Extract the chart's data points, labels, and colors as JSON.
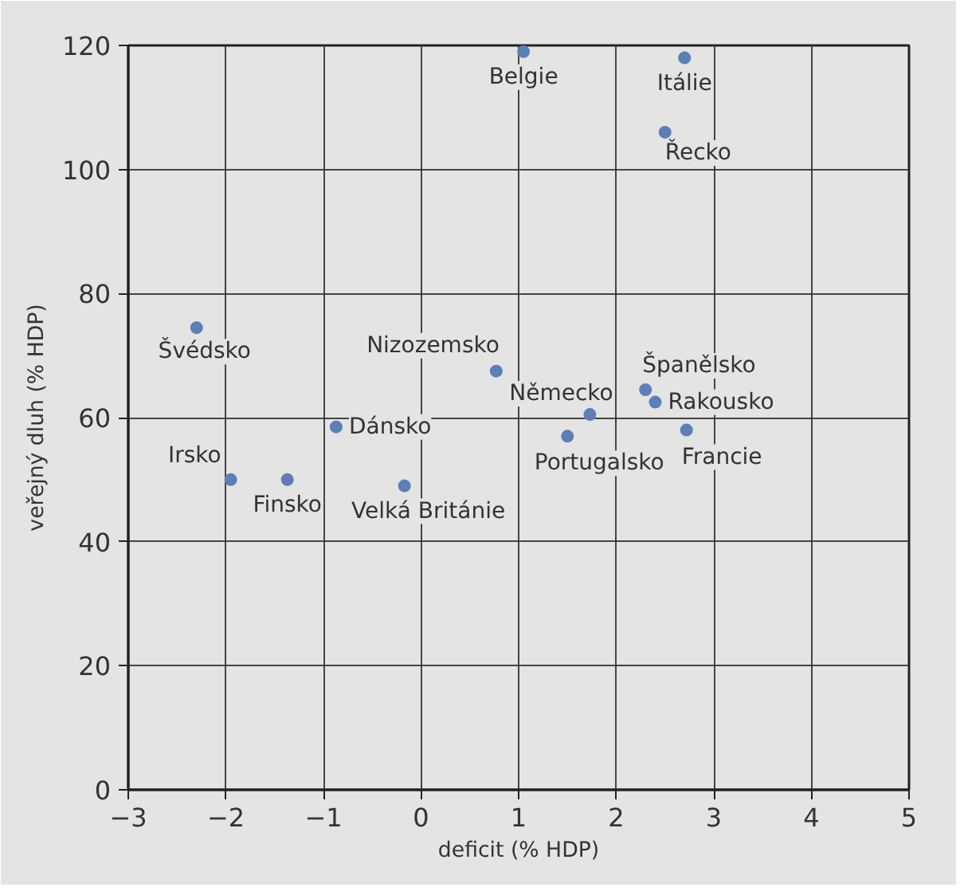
{
  "chart_data": {
    "type": "scatter",
    "xlabel": "deficit (% HDP)",
    "ylabel": "veřejný dluh (% HDP)",
    "x": [
      1.05,
      2.7,
      2.5,
      -2.3,
      0.77,
      1.73,
      2.3,
      2.4,
      1.5,
      2.72,
      -0.87,
      -1.95,
      -1.37,
      -0.17
    ],
    "values": [
      119,
      118,
      106,
      74.5,
      67.5,
      60.5,
      64.5,
      62.5,
      57,
      58,
      58.5,
      50,
      50,
      49
    ],
    "color": "#5b7fb8",
    "marker": "circle",
    "xlim": [
      -3,
      5
    ],
    "ylim": [
      0,
      120
    ],
    "xticks": [
      {
        "value": -3,
        "label": "−3"
      },
      {
        "value": -2,
        "label": "−2"
      },
      {
        "value": -1,
        "label": "−1"
      },
      0,
      1,
      2,
      3,
      4,
      5
    ],
    "yticks": [
      0,
      20,
      40,
      60,
      80,
      100,
      120
    ],
    "grid": true,
    "annotations": [
      {
        "text": "Belgie",
        "x": 1.05,
        "y": 119
      },
      {
        "text": "Itálie",
        "x": 2.7,
        "y": 118
      },
      {
        "text": "Řecko",
        "x": 2.5,
        "y": 106
      },
      {
        "text": "Švédsko",
        "x": -2.3,
        "y": 74.5
      },
      {
        "text": "Nizozemsko",
        "x": 0.77,
        "y": 67.5
      },
      {
        "text": "Německo",
        "x": 1.73,
        "y": 60.5
      },
      {
        "text": "Španělsko",
        "x": 2.3,
        "y": 64.5
      },
      {
        "text": "Rakousko",
        "x": 2.4,
        "y": 62.5
      },
      {
        "text": "Portugalsko",
        "x": 1.5,
        "y": 57
      },
      {
        "text": "Francie",
        "x": 2.72,
        "y": 58
      },
      {
        "text": "Dánsko",
        "x": -0.87,
        "y": 58.5
      },
      {
        "text": "Irsko",
        "x": -1.95,
        "y": 50
      },
      {
        "text": "Finsko",
        "x": -1.37,
        "y": 50
      },
      {
        "text": "Velká Británie",
        "x": -0.17,
        "y": 49
      }
    ]
  }
}
